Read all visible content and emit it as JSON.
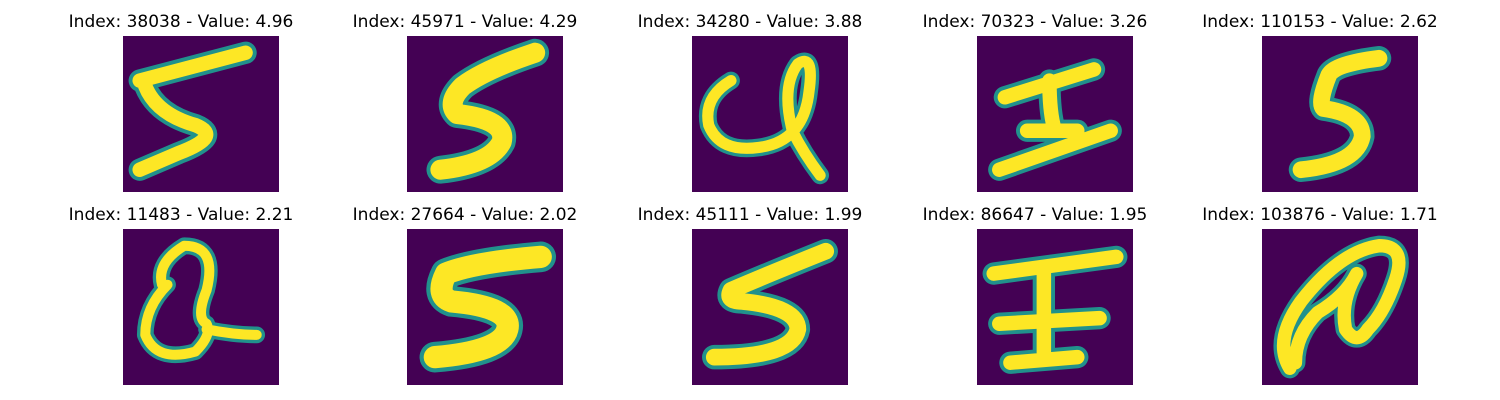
{
  "panels": [
    {
      "index_label": "Index: ",
      "index": "38038",
      "sep": " - Value: ",
      "value": "4.96",
      "digit_icon": "handwritten-5-icon"
    },
    {
      "index_label": "Index: ",
      "index": "45971",
      "sep": " - Value: ",
      "value": "4.29",
      "digit_icon": "handwritten-5-icon"
    },
    {
      "index_label": "Index: ",
      "index": "34280",
      "sep": " - Value: ",
      "value": "3.88",
      "digit_icon": "handwritten-loop-icon"
    },
    {
      "index_label": "Index: ",
      "index": "70323",
      "sep": " - Value: ",
      "value": "3.26",
      "digit_icon": "handwritten-stroke-icon"
    },
    {
      "index_label": "Index: ",
      "index": "110153",
      "sep": " - Value: ",
      "value": "2.62",
      "digit_icon": "handwritten-5-icon"
    },
    {
      "index_label": "Index: ",
      "index": "11483",
      "sep": " - Value: ",
      "value": "2.21",
      "digit_icon": "handwritten-loop-icon"
    },
    {
      "index_label": "Index: ",
      "index": "27664",
      "sep": " - Value: ",
      "value": "2.02",
      "digit_icon": "handwritten-5-icon"
    },
    {
      "index_label": "Index: ",
      "index": "45111",
      "sep": " - Value: ",
      "value": "1.99",
      "digit_icon": "handwritten-5-icon"
    },
    {
      "index_label": "Index: ",
      "index": "86647",
      "sep": " - Value: ",
      "value": "1.95",
      "digit_icon": "handwritten-stroke-icon"
    },
    {
      "index_label": "Index: ",
      "index": "103876",
      "sep": " - Value: ",
      "value": "1.71",
      "digit_icon": "handwritten-loop-icon"
    }
  ],
  "colors": {
    "background": "#440154",
    "stroke": "#fde725",
    "edge": "#21918c"
  }
}
